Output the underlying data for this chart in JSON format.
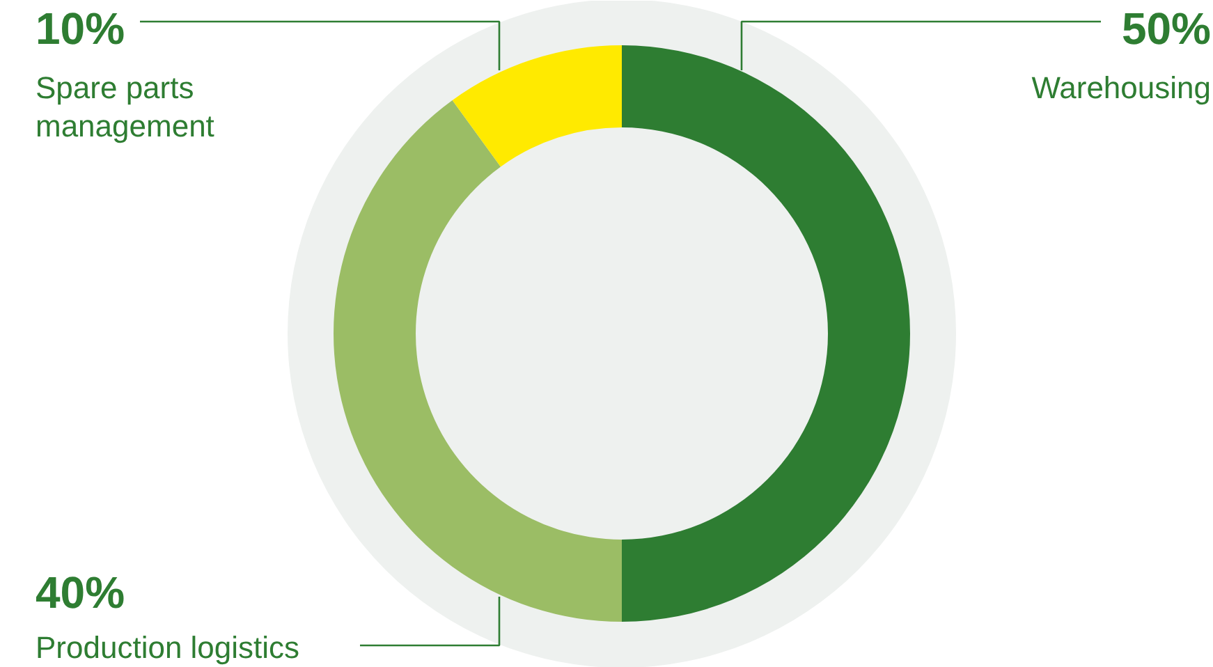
{
  "chart_data": {
    "type": "donut",
    "categories": [
      "Warehousing",
      "Production logistics",
      "Spare parts\nmanagement"
    ],
    "values": [
      50,
      40,
      10
    ],
    "colors": [
      "#2e7d32",
      "#9bbd65",
      "#ffea00"
    ],
    "value_labels": [
      "50%",
      "40%",
      "10%"
    ]
  }
}
